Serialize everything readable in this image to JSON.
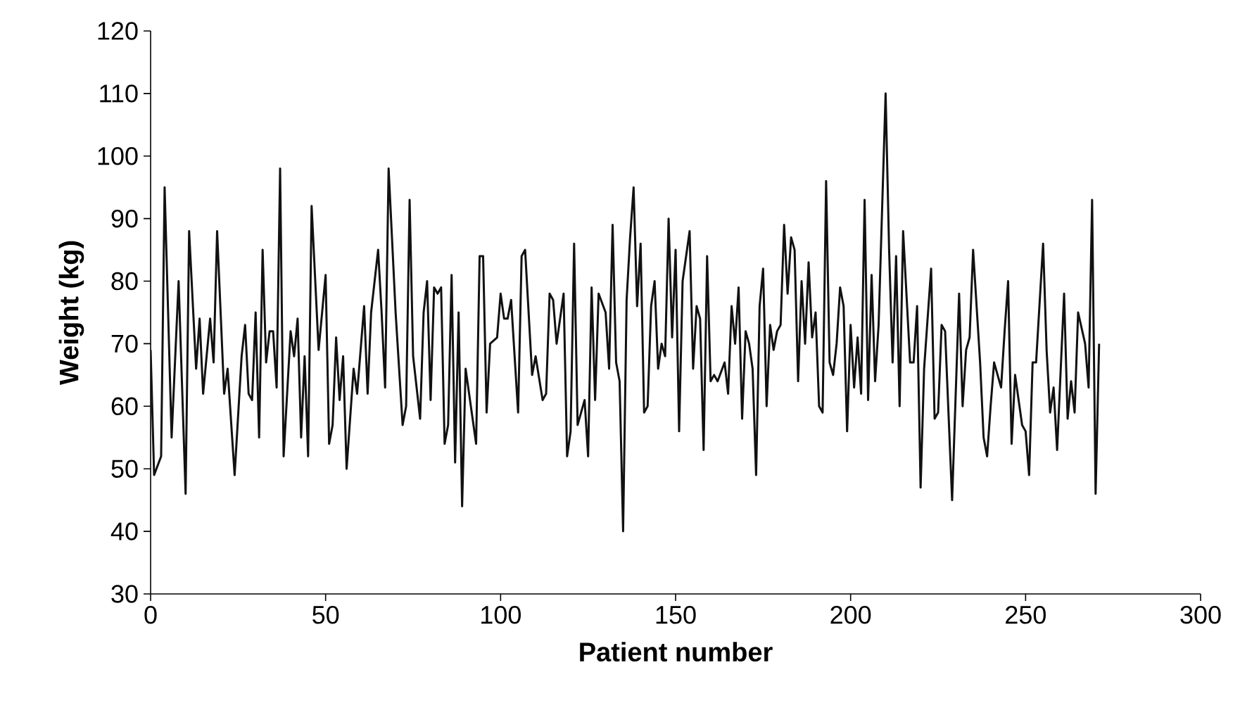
{
  "chart_data": {
    "type": "line",
    "xlabel": "Patient number",
    "ylabel": "Weight (kg)",
    "xlim": [
      0,
      300
    ],
    "ylim": [
      30,
      120
    ],
    "xticks": [
      0,
      50,
      100,
      150,
      200,
      250,
      300
    ],
    "yticks": [
      30,
      40,
      50,
      60,
      70,
      80,
      90,
      100,
      110,
      120
    ],
    "grid": false,
    "legend": false,
    "marker": "none",
    "line_style": "solid",
    "series": [
      {
        "color": "#111111",
        "x": [
          0,
          1,
          3,
          4,
          6,
          8,
          10,
          11,
          13,
          14,
          15,
          17,
          18,
          19,
          21,
          22,
          24,
          26,
          27,
          28,
          29,
          30,
          31,
          32,
          33,
          34,
          35,
          36,
          37,
          38,
          40,
          41,
          42,
          43,
          44,
          45,
          46,
          48,
          50,
          51,
          52,
          53,
          54,
          55,
          56,
          58,
          59,
          61,
          62,
          63,
          65,
          66,
          67,
          68,
          70,
          72,
          73,
          74,
          75,
          77,
          78,
          79,
          80,
          81,
          82,
          83,
          84,
          85,
          86,
          87,
          88,
          89,
          90,
          93,
          94,
          95,
          96,
          97,
          99,
          100,
          101,
          102,
          103,
          105,
          106,
          107,
          109,
          110,
          112,
          113,
          114,
          115,
          116,
          118,
          119,
          120,
          121,
          122,
          124,
          125,
          126,
          127,
          128,
          130,
          131,
          132,
          133,
          134,
          135,
          136,
          137,
          138,
          139,
          140,
          141,
          142,
          143,
          144,
          145,
          146,
          147,
          148,
          149,
          150,
          151,
          152,
          153,
          154,
          155,
          156,
          157,
          158,
          159,
          160,
          161,
          162,
          164,
          165,
          166,
          167,
          168,
          169,
          170,
          171,
          172,
          173,
          174,
          175,
          176,
          177,
          178,
          179,
          180,
          181,
          182,
          183,
          184,
          185,
          186,
          187,
          188,
          189,
          190,
          191,
          192,
          193,
          194,
          195,
          196,
          197,
          198,
          199,
          200,
          201,
          202,
          203,
          204,
          205,
          206,
          207,
          208,
          210,
          211,
          212,
          213,
          214,
          215,
          217,
          218,
          219,
          220,
          221,
          223,
          224,
          225,
          226,
          227,
          229,
          231,
          232,
          233,
          234,
          235,
          237,
          238,
          239,
          240,
          241,
          243,
          244,
          245,
          246,
          247,
          249,
          250,
          251,
          252,
          253,
          255,
          256,
          257,
          258,
          259,
          261,
          262,
          263,
          264,
          265,
          267,
          268,
          269,
          270,
          271
        ],
        "values": [
          69,
          49,
          52,
          95,
          55,
          80,
          46,
          88,
          66,
          74,
          62,
          74,
          67,
          88,
          62,
          66,
          49,
          68,
          73,
          62,
          61,
          75,
          55,
          85,
          67,
          72,
          72,
          63,
          98,
          52,
          72,
          68,
          74,
          55,
          68,
          52,
          92,
          69,
          81,
          54,
          57,
          71,
          61,
          68,
          50,
          66,
          62,
          76,
          62,
          75,
          85,
          75,
          63,
          98,
          75,
          57,
          60,
          93,
          68,
          58,
          75,
          80,
          61,
          79,
          78,
          79,
          54,
          57,
          81,
          51,
          75,
          44,
          66,
          54,
          84,
          84,
          59,
          70,
          71,
          78,
          74,
          74,
          77,
          59,
          84,
          85,
          65,
          68,
          61,
          62,
          78,
          77,
          70,
          78,
          52,
          56,
          86,
          57,
          61,
          52,
          79,
          61,
          78,
          75,
          66,
          89,
          67,
          64,
          40,
          77,
          87,
          95,
          76,
          86,
          59,
          60,
          76,
          80,
          66,
          70,
          68,
          90,
          71,
          85,
          56,
          80,
          84,
          88,
          66,
          76,
          74,
          53,
          84,
          64,
          65,
          64,
          67,
          62,
          76,
          70,
          79,
          58,
          72,
          70,
          66,
          49,
          76,
          82,
          60,
          73,
          69,
          72,
          73,
          89,
          78,
          87,
          85,
          64,
          80,
          70,
          83,
          71,
          75,
          60,
          59,
          96,
          67,
          65,
          70,
          79,
          76,
          56,
          73,
          63,
          71,
          62,
          93,
          61,
          81,
          64,
          73,
          110,
          85,
          67,
          84,
          60,
          88,
          67,
          67,
          76,
          47,
          66,
          82,
          58,
          59,
          73,
          72,
          45,
          78,
          60,
          69,
          71,
          85,
          67,
          55,
          52,
          60,
          67,
          63,
          72,
          80,
          54,
          65,
          57,
          56,
          49,
          67,
          67,
          86,
          69,
          59,
          63,
          53,
          78,
          58,
          64,
          59,
          75,
          70,
          63,
          93,
          46,
          70
        ]
      }
    ]
  }
}
